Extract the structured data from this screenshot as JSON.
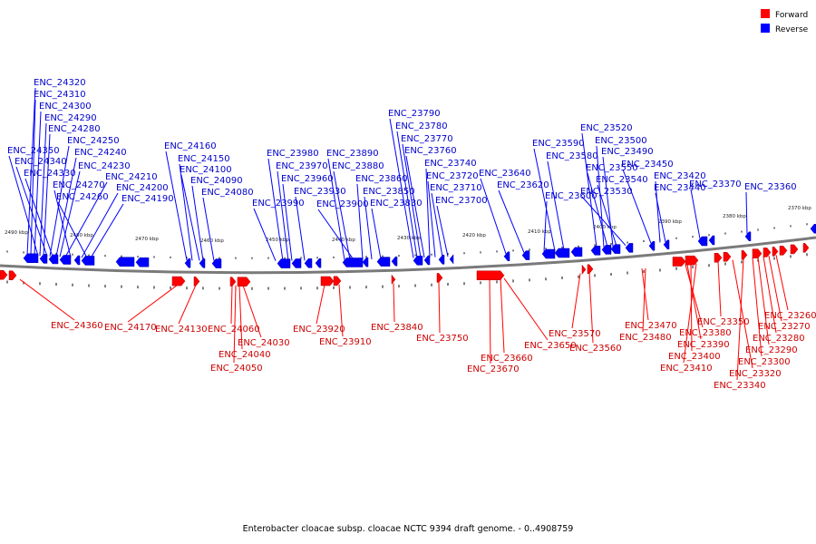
{
  "caption": "Enterobacter cloacae subsp. cloacae NCTC 9394 draft genome. - 0..4908759",
  "legend": [
    {
      "label": "Forward",
      "color": "#ff0000"
    },
    {
      "label": "Reverse",
      "color": "#0000ff"
    }
  ],
  "ticks": [
    "2490 kbp",
    "2480 kbp",
    "2470 kbp",
    "2460 kbp",
    "2450 kbp",
    "2440 kbp",
    "2430 kbp",
    "2420 kbp",
    "2410 kbp",
    "2400 kbp",
    "2390 kbp",
    "2380 kbp",
    "2370 kbp"
  ],
  "reverse_genes": [
    "ENC_24320",
    "ENC_24310",
    "ENC_24300",
    "ENC_24290",
    "ENC_24280",
    "ENC_24250",
    "ENC_24350",
    "ENC_24240",
    "ENC_24340",
    "ENC_24230",
    "ENC_24330",
    "ENC_24210",
    "ENC_24270",
    "ENC_24200",
    "ENC_24260",
    "ENC_24190",
    "ENC_24160",
    "ENC_24150",
    "ENC_24100",
    "ENC_24090",
    "ENC_24080",
    "ENC_23980",
    "ENC_23970",
    "ENC_23960",
    "ENC_23930",
    "ENC_23990",
    "ENC_23890",
    "ENC_23880",
    "ENC_23860",
    "ENC_23850",
    "ENC_23900",
    "ENC_23830",
    "ENC_23790",
    "ENC_23780",
    "ENC_23770",
    "ENC_23760",
    "ENC_23740",
    "ENC_23720",
    "ENC_23710",
    "ENC_23700",
    "ENC_23640",
    "ENC_23620",
    "ENC_23600",
    "ENC_23590",
    "ENC_23580",
    "ENC_23520",
    "ENC_23500",
    "ENC_23490",
    "ENC_23550",
    "ENC_23540",
    "ENC_23530",
    "ENC_23450",
    "ENC_23420",
    "ENC_23440",
    "ENC_23370",
    "ENC_23360"
  ],
  "forward_genes": [
    "ENC_24360",
    "ENC_24170",
    "ENC_24130",
    "ENC_24060",
    "ENC_24030",
    "ENC_24040",
    "ENC_24050",
    "ENC_23920",
    "ENC_23910",
    "ENC_23840",
    "ENC_23750",
    "ENC_23650",
    "ENC_23660",
    "ENC_23670",
    "ENC_23570",
    "ENC_23560",
    "ENC_23470",
    "ENC_23480",
    "ENC_23380",
    "ENC_23390",
    "ENC_23400",
    "ENC_23410",
    "ENC_23350",
    "ENC_23320",
    "ENC_23340",
    "ENC_23300",
    "ENC_23290",
    "ENC_23280",
    "ENC_23270",
    "ENC_23260"
  ]
}
